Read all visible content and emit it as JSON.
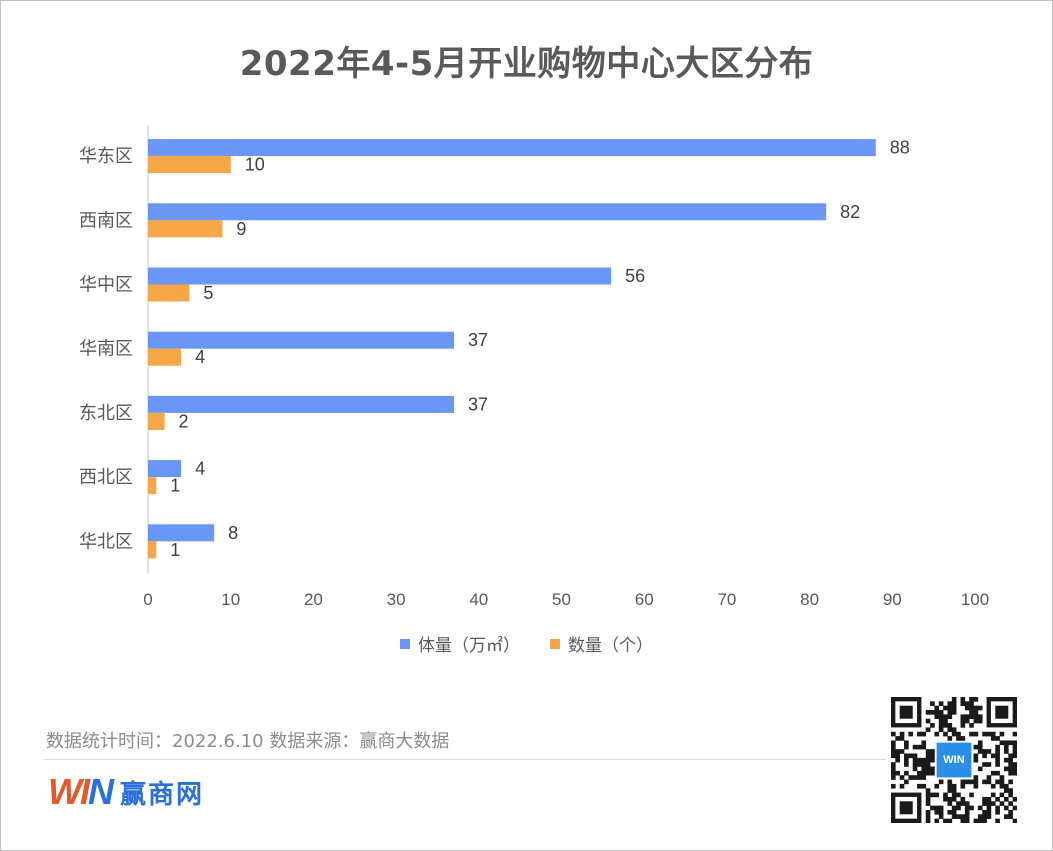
{
  "title": "2022年4-5月开业购物中心大区分布",
  "footer": {
    "source_text": "数据统计时间：2022.6.10  数据来源：赢商大数据",
    "logo_mark": "WIN",
    "logo_text": "赢商网",
    "qr_badge": "WIN"
  },
  "colors": {
    "series_volume": "#6a96f6",
    "series_count": "#f5a646",
    "axis_text": "#595959",
    "title": "#595959"
  },
  "chart_data": {
    "type": "bar",
    "orientation": "horizontal",
    "title": "2022年4-5月开业购物中心大区分布",
    "categories": [
      "华东区",
      "西南区",
      "华中区",
      "华南区",
      "东北区",
      "西北区",
      "华北区"
    ],
    "series": [
      {
        "name": "体量（万㎡）",
        "values": [
          88,
          82,
          56,
          37,
          37,
          4,
          8
        ]
      },
      {
        "name": "数量（个）",
        "values": [
          10,
          9,
          5,
          4,
          2,
          1,
          1
        ]
      }
    ],
    "xlim": [
      0,
      100
    ],
    "xticks": [
      0,
      10,
      20,
      30,
      40,
      50,
      60,
      70,
      80,
      90,
      100
    ],
    "grid": false,
    "legend": "bottom",
    "data_labels": true
  }
}
